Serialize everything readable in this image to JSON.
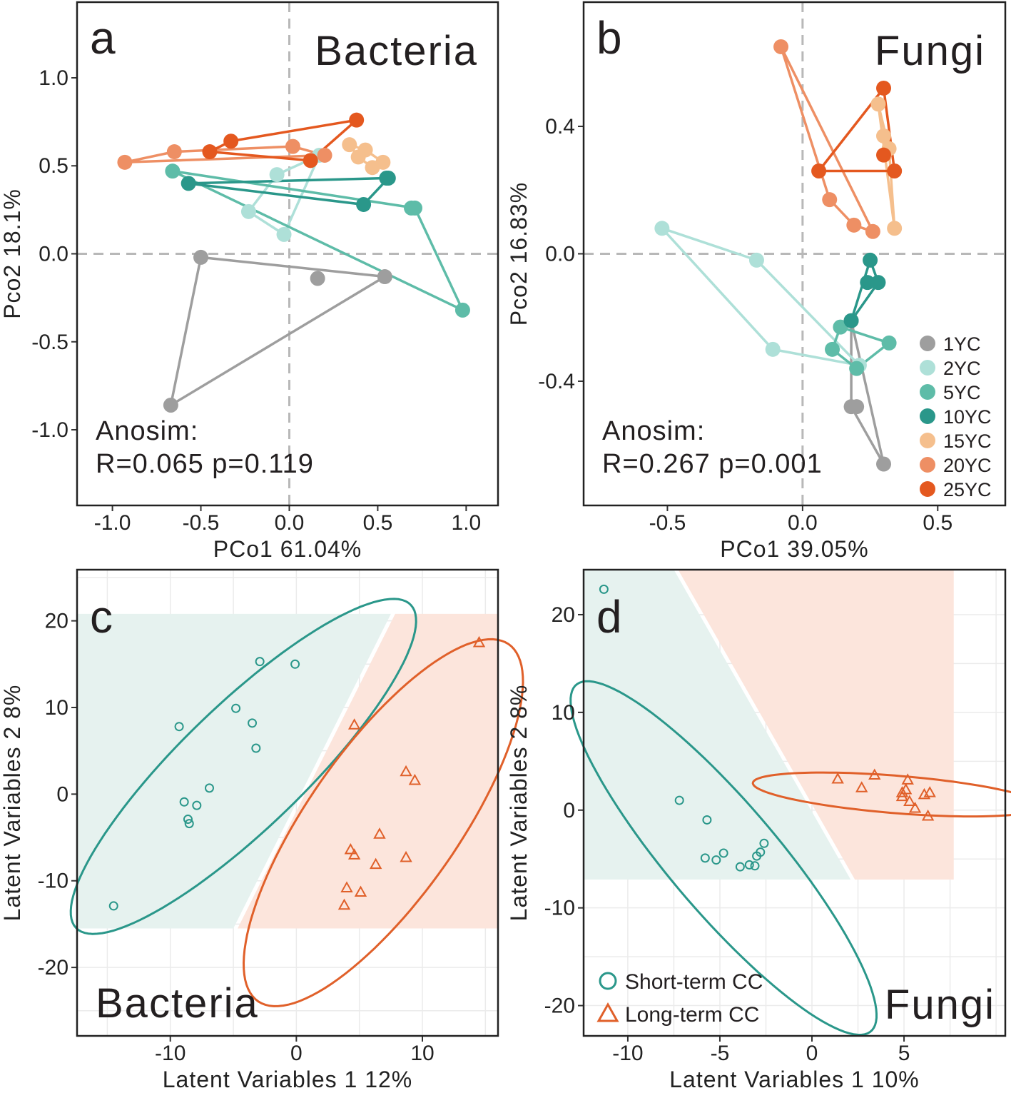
{
  "figure": {
    "colors": {
      "1YC": "#9e9e9e",
      "2YC": "#aee0d8",
      "5YC": "#5ebca8",
      "10YC": "#2a978a",
      "15YC": "#f5bf8d",
      "20YC": "#ee8f64",
      "25YC": "#e4581f",
      "short": "#2a978a",
      "long": "#e0602a",
      "short_bg": "#e6f2ef",
      "long_bg": "#fce5dc",
      "ref_line": "#b8b8b8",
      "grid": "#ebebeb"
    },
    "legend_groups": [
      "1YC",
      "2YC",
      "5YC",
      "10YC",
      "15YC",
      "20YC",
      "25YC"
    ],
    "legend_classes": [
      "Short-term CC",
      "Long-term CC"
    ]
  },
  "chart_data": [
    {
      "id": "a",
      "type": "scatter",
      "panel_letter": "a",
      "label": "Bacteria",
      "xlabel": "PCo1  61.04%",
      "ylabel": "Pco2  18.1%",
      "xlim": [
        -1.2,
        1.18
      ],
      "ylim": [
        -1.43,
        1.43
      ],
      "xticks": [
        -1.0,
        -0.5,
        0.0,
        0.5,
        1.0
      ],
      "xtick_labels": [
        "-1.0",
        "-0.5",
        "0.0",
        "0.5",
        "1.0"
      ],
      "yticks": [
        -1.0,
        -0.5,
        0.0,
        0.5,
        1.0
      ],
      "ytick_labels": [
        "-1.0",
        "-0.5",
        "0.0",
        "0.5",
        "1.0"
      ],
      "stat_line1": "Anosim:",
      "stat_line2": "R=0.065  p=0.119",
      "series": [
        {
          "name": "1YC",
          "hull": true,
          "points": [
            [
              -0.5,
              -0.02
            ],
            [
              0.16,
              -0.14
            ],
            [
              0.54,
              -0.13
            ],
            [
              -0.67,
              -0.86
            ]
          ]
        },
        {
          "name": "2YC",
          "hull": true,
          "points": [
            [
              0.17,
              0.56
            ],
            [
              -0.07,
              0.45
            ],
            [
              -0.23,
              0.24
            ],
            [
              -0.03,
              0.11
            ]
          ]
        },
        {
          "name": "5YC",
          "hull": true,
          "points": [
            [
              -0.66,
              0.47
            ],
            [
              0.69,
              0.26
            ],
            [
              0.71,
              0.26
            ],
            [
              0.98,
              -0.32
            ]
          ]
        },
        {
          "name": "10YC",
          "hull": true,
          "points": [
            [
              -0.57,
              0.4
            ],
            [
              0.55,
              0.43
            ],
            [
              0.56,
              0.43
            ],
            [
              0.42,
              0.28
            ]
          ]
        },
        {
          "name": "15YC",
          "hull": true,
          "points": [
            [
              0.34,
              0.62
            ],
            [
              0.43,
              0.59
            ],
            [
              0.53,
              0.52
            ],
            [
              0.47,
              0.49
            ],
            [
              0.39,
              0.55
            ]
          ]
        },
        {
          "name": "20YC",
          "hull": true,
          "points": [
            [
              -0.93,
              0.52
            ],
            [
              -0.65,
              0.58
            ],
            [
              0.02,
              0.61
            ],
            [
              0.2,
              0.56
            ]
          ]
        },
        {
          "name": "25YC",
          "hull": true,
          "points": [
            [
              0.38,
              0.76
            ],
            [
              -0.33,
              0.64
            ],
            [
              -0.45,
              0.58
            ],
            [
              0.12,
              0.53
            ]
          ]
        }
      ]
    },
    {
      "id": "b",
      "type": "scatter",
      "panel_letter": "b",
      "label": "Fungi",
      "xlabel": "PCo1  39.05%",
      "ylabel": "Pco2  16.83%",
      "xlim": [
        -0.81,
        0.75
      ],
      "ylim": [
        -0.79,
        0.79
      ],
      "xticks": [
        -0.5,
        0.0,
        0.5
      ],
      "xtick_labels": [
        "-0.5",
        "0.0",
        "0.5"
      ],
      "yticks": [
        -0.4,
        0.0,
        0.4
      ],
      "ytick_labels": [
        "-0.4",
        "0.0",
        "0.4"
      ],
      "stat_line1": "Anosim:",
      "stat_line2": "R=0.267  p=0.001",
      "series": [
        {
          "name": "1YC",
          "hull": true,
          "points": [
            [
              0.18,
              -0.21
            ],
            [
              0.18,
              -0.48
            ],
            [
              0.2,
              -0.48
            ],
            [
              0.3,
              -0.66
            ]
          ]
        },
        {
          "name": "2YC",
          "hull": true,
          "points": [
            [
              -0.52,
              0.08
            ],
            [
              -0.17,
              -0.02
            ],
            [
              -0.11,
              -0.3
            ],
            [
              0.21,
              -0.35
            ]
          ]
        },
        {
          "name": "5YC",
          "hull": true,
          "points": [
            [
              0.14,
              -0.23
            ],
            [
              0.32,
              -0.28
            ],
            [
              0.11,
              -0.3
            ],
            [
              0.2,
              -0.36
            ]
          ]
        },
        {
          "name": "10YC",
          "hull": true,
          "points": [
            [
              0.25,
              -0.02
            ],
            [
              0.24,
              -0.09
            ],
            [
              0.28,
              -0.09
            ],
            [
              0.18,
              -0.21
            ]
          ]
        },
        {
          "name": "15YC",
          "hull": true,
          "points": [
            [
              0.28,
              0.47
            ],
            [
              0.3,
              0.37
            ],
            [
              0.32,
              0.33
            ],
            [
              0.34,
              0.08
            ]
          ]
        },
        {
          "name": "20YC",
          "hull": true,
          "points": [
            [
              -0.08,
              0.65
            ],
            [
              0.1,
              0.17
            ],
            [
              0.19,
              0.09
            ],
            [
              0.26,
              0.07
            ]
          ]
        },
        {
          "name": "25YC",
          "hull": true,
          "points": [
            [
              0.3,
              0.52
            ],
            [
              0.06,
              0.26
            ],
            [
              0.3,
              0.31
            ],
            [
              0.34,
              0.26
            ]
          ]
        }
      ]
    },
    {
      "id": "c",
      "type": "scatter",
      "panel_letter": "c",
      "label": "Bacteria",
      "xlabel": "Latent Variables 1  12%",
      "ylabel": "Latent Variables 2  8%",
      "xlim": [
        -17.4,
        16.0
      ],
      "ylim": [
        -27.9,
        25.9
      ],
      "xticks": [
        -10,
        0,
        10
      ],
      "xtick_labels": [
        "-10",
        "0",
        "10"
      ],
      "yticks": [
        -20,
        -10,
        0,
        10,
        20
      ],
      "ytick_labels": [
        "-20",
        "-10",
        "0",
        "10",
        "20"
      ],
      "grid": true,
      "regions": {
        "y_range": [
          -15.5,
          20.8
        ],
        "boundary": [
          [
            7.5,
            20.8
          ],
          [
            -5.0,
            -15.5
          ]
        ]
      },
      "series": [
        {
          "name": "Short-term CC",
          "marker": "circle",
          "points": [
            [
              -14.5,
              -12.9
            ],
            [
              -9.3,
              7.8
            ],
            [
              -8.5,
              -3.4
            ],
            [
              -8.6,
              -2.9
            ],
            [
              -8.9,
              -0.9
            ],
            [
              -7.9,
              -1.3
            ],
            [
              -6.9,
              0.7
            ],
            [
              -4.8,
              9.9
            ],
            [
              -3.5,
              8.2
            ],
            [
              -3.2,
              5.3
            ],
            [
              -2.9,
              15.3
            ],
            [
              -0.1,
              15.0
            ]
          ],
          "ellipse": {
            "center": [
              -4.2,
              3.2
            ],
            "semi_major": 23.0,
            "semi_minor": 5.7,
            "angle_deg": 56
          }
        },
        {
          "name": "Long-term CC",
          "marker": "triangle",
          "points": [
            [
              14.5,
              17.5
            ],
            [
              4.6,
              8.0
            ],
            [
              8.7,
              2.6
            ],
            [
              9.4,
              1.6
            ],
            [
              6.6,
              -4.6
            ],
            [
              4.3,
              -6.4
            ],
            [
              4.6,
              -7.0
            ],
            [
              6.3,
              -8.1
            ],
            [
              8.7,
              -7.3
            ],
            [
              4.0,
              -10.8
            ],
            [
              5.1,
              -11.3
            ],
            [
              3.8,
              -12.8
            ]
          ],
          "ellipse": {
            "center": [
              6.9,
              -3.3
            ],
            "semi_major": 23.0,
            "semi_minor": 6.5,
            "angle_deg": 66
          }
        }
      ]
    },
    {
      "id": "d",
      "type": "scatter",
      "panel_letter": "d",
      "label": "Fungi",
      "xlabel": "Latent Variables 1  10%",
      "ylabel": "Latent Variables 2  8%",
      "xlim": [
        -12.4,
        10.5
      ],
      "ylim": [
        -23.1,
        24.6
      ],
      "xticks": [
        -10,
        -5,
        0,
        5
      ],
      "xtick_labels": [
        "-10",
        "-5",
        "0",
        "5"
      ],
      "yticks": [
        -20,
        -10,
        0,
        10,
        20
      ],
      "ytick_labels": [
        "-20",
        "-10",
        "0",
        "10",
        "20"
      ],
      "grid": true,
      "regions": {
        "y_range": [
          -7.1,
          24.6
        ],
        "x_max": 7.7,
        "boundary": [
          [
            -7.5,
            24.6
          ],
          [
            2.1,
            -7.1
          ]
        ]
      },
      "series": [
        {
          "name": "Short-term CC",
          "marker": "circle",
          "points": [
            [
              -11.3,
              22.6
            ],
            [
              -7.2,
              1.0
            ],
            [
              -5.7,
              -1.0
            ],
            [
              -5.8,
              -4.9
            ],
            [
              -5.2,
              -5.1
            ],
            [
              -4.8,
              -4.4
            ],
            [
              -3.9,
              -5.8
            ],
            [
              -3.4,
              -5.6
            ],
            [
              -3.1,
              -5.7
            ],
            [
              -3.0,
              -4.7
            ],
            [
              -2.8,
              -4.3
            ],
            [
              -2.6,
              -3.4
            ]
          ],
          "ellipse": {
            "center": [
              -4.8,
              -4.9
            ],
            "semi_major": 19.6,
            "semi_minor": 3.5,
            "angle_deg": 113
          }
        },
        {
          "name": "Long-term CC",
          "marker": "triangle",
          "points": [
            [
              1.4,
              3.2
            ],
            [
              2.7,
              2.3
            ],
            [
              3.4,
              3.6
            ],
            [
              4.9,
              1.8
            ],
            [
              4.9,
              1.4
            ],
            [
              5.1,
              2.1
            ],
            [
              5.2,
              3.1
            ],
            [
              5.3,
              0.9
            ],
            [
              5.6,
              0.2
            ],
            [
              6.1,
              1.6
            ],
            [
              6.4,
              1.8
            ],
            [
              6.3,
              -0.6
            ]
          ],
          "ellipse": {
            "center": [
              4.6,
              1.6
            ],
            "semi_major": 7.9,
            "semi_minor": 1.9,
            "angle_deg": -9
          }
        }
      ]
    }
  ]
}
